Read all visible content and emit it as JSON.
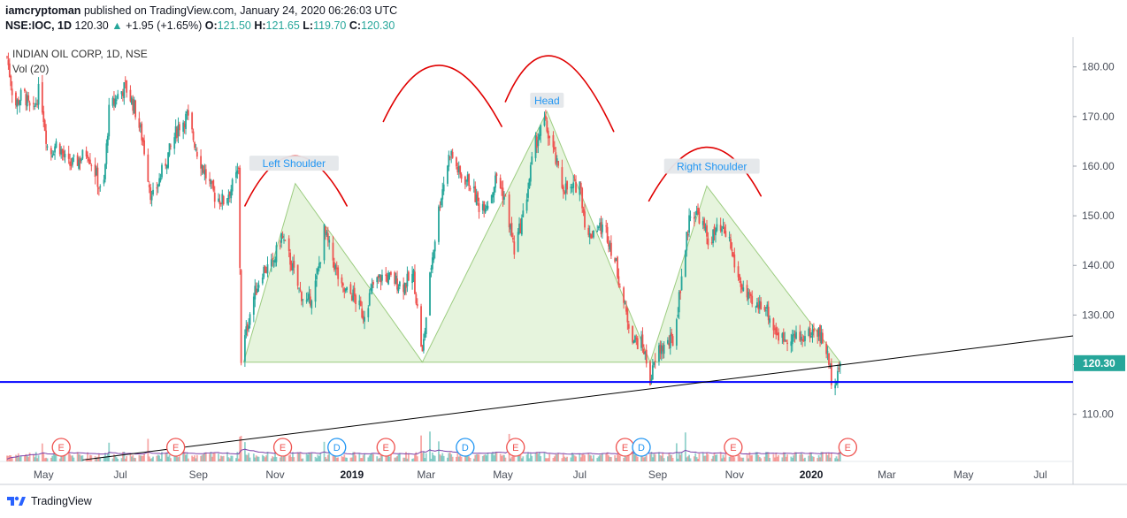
{
  "header": {
    "author": "iamcryptoman",
    "published_text": "published on TradingView.com, January 24, 2020 06:26:03 UTC",
    "symbol_line": "NSE:IOC, 1D",
    "last": "120.30",
    "arrow": "▲",
    "change": "+1.95 (+1.65%)",
    "o_label": "O:",
    "o_value": "121.50",
    "h_label": "H:",
    "h_value": "121.65",
    "l_label": "L:",
    "l_value": "119.70",
    "c_label": "C:",
    "c_value": "120.30"
  },
  "legend": {
    "series_title": "INDIAN OIL CORP, 1D, NSE",
    "volume_label": "Vol (20)"
  },
  "footer": {
    "brand": "TradingView"
  },
  "colors": {
    "up": "#26a69a",
    "down": "#ef5350",
    "support": "#0000ff",
    "trendline": "#000000",
    "hs_fill": "#c8e6b4",
    "arc": "#e00000",
    "price_badge": "#26a69a",
    "event_E": "#ef5350",
    "event_D": "#2196f3"
  },
  "chart_data": {
    "type": "candlestick",
    "y_axis": {
      "ticks": [
        110.0,
        120.0,
        130.0,
        140.0,
        150.0,
        160.0,
        170.0,
        180.0
      ],
      "range": [
        100.5,
        186.0
      ],
      "side": "right"
    },
    "x_axis": {
      "ticks": [
        "May",
        "Jul",
        "Sep",
        "Nov",
        "2019",
        "Mar",
        "May",
        "Jul",
        "Sep",
        "Nov",
        "2020",
        "Mar",
        "May",
        "Jul"
      ],
      "range": [
        "2018-04-02",
        "2020-07-27"
      ]
    },
    "last_price": "120.30",
    "price_path": [
      [
        "2018-04-02",
        182
      ],
      [
        "2018-04-08",
        172
      ],
      [
        "2018-04-15",
        175
      ],
      [
        "2018-04-22",
        170
      ],
      [
        "2018-04-28",
        176
      ],
      [
        "2018-05-05",
        162
      ],
      [
        "2018-05-12",
        165
      ],
      [
        "2018-05-20",
        160
      ],
      [
        "2018-05-28",
        161
      ],
      [
        "2018-06-05",
        163
      ],
      [
        "2018-06-12",
        158
      ],
      [
        "2018-06-17",
        153
      ],
      [
        "2018-06-22",
        171
      ],
      [
        "2018-06-28",
        174
      ],
      [
        "2018-07-05",
        176
      ],
      [
        "2018-07-12",
        172
      ],
      [
        "2018-07-19",
        165
      ],
      [
        "2018-07-26",
        153
      ],
      [
        "2018-08-02",
        158
      ],
      [
        "2018-08-09",
        163
      ],
      [
        "2018-08-16",
        168
      ],
      [
        "2018-08-23",
        170
      ],
      [
        "2018-08-31",
        163
      ],
      [
        "2018-09-07",
        158
      ],
      [
        "2018-09-14",
        154
      ],
      [
        "2018-09-21",
        153
      ],
      [
        "2018-09-28",
        156
      ],
      [
        "2018-10-03",
        159
      ],
      [
        "2018-10-05",
        121
      ],
      [
        "2018-10-07",
        124
      ],
      [
        "2018-10-14",
        133
      ],
      [
        "2018-10-22",
        139
      ],
      [
        "2018-10-30",
        140
      ],
      [
        "2018-11-06",
        146
      ],
      [
        "2018-11-13",
        141
      ],
      [
        "2018-11-20",
        135
      ],
      [
        "2018-11-27",
        132
      ],
      [
        "2018-12-04",
        137
      ],
      [
        "2018-12-10",
        147
      ],
      [
        "2018-12-16",
        142
      ],
      [
        "2018-12-24",
        135
      ],
      [
        "2019-01-02",
        134
      ],
      [
        "2019-01-10",
        130
      ],
      [
        "2019-01-18",
        136
      ],
      [
        "2019-01-26",
        138
      ],
      [
        "2019-02-03",
        137
      ],
      [
        "2019-02-11",
        136
      ],
      [
        "2019-02-19",
        138
      ],
      [
        "2019-02-26",
        122
      ],
      [
        "2019-03-05",
        140
      ],
      [
        "2019-03-12",
        153
      ],
      [
        "2019-03-20",
        163
      ],
      [
        "2019-03-28",
        158
      ],
      [
        "2019-04-04",
        157
      ],
      [
        "2019-04-12",
        152
      ],
      [
        "2019-04-20",
        153
      ],
      [
        "2019-04-26",
        158
      ],
      [
        "2019-05-03",
        153
      ],
      [
        "2019-05-10",
        143
      ],
      [
        "2019-05-18",
        151
      ],
      [
        "2019-05-26",
        164
      ],
      [
        "2019-06-03",
        169
      ],
      [
        "2019-06-10",
        163
      ],
      [
        "2019-06-17",
        156
      ],
      [
        "2019-06-24",
        155
      ],
      [
        "2019-07-01",
        157
      ],
      [
        "2019-07-07",
        145
      ],
      [
        "2019-07-14",
        148
      ],
      [
        "2019-07-22",
        147
      ],
      [
        "2019-07-30",
        140
      ],
      [
        "2019-08-06",
        131
      ],
      [
        "2019-08-13",
        125
      ],
      [
        "2019-08-20",
        124
      ],
      [
        "2019-08-26",
        117
      ],
      [
        "2019-09-02",
        123
      ],
      [
        "2019-09-08",
        124
      ],
      [
        "2019-09-14",
        125
      ],
      [
        "2019-09-20",
        138
      ],
      [
        "2019-09-27",
        151
      ],
      [
        "2019-10-04",
        150
      ],
      [
        "2019-10-11",
        145
      ],
      [
        "2019-10-19",
        147
      ],
      [
        "2019-10-27",
        146
      ],
      [
        "2019-11-03",
        138
      ],
      [
        "2019-11-10",
        134
      ],
      [
        "2019-11-17",
        131
      ],
      [
        "2019-11-24",
        133
      ],
      [
        "2019-12-01",
        128
      ],
      [
        "2019-12-08",
        125
      ],
      [
        "2019-12-15",
        126
      ],
      [
        "2019-12-22",
        125
      ],
      [
        "2019-12-29",
        126
      ],
      [
        "2020-01-06",
        127
      ],
      [
        "2020-01-13",
        123
      ],
      [
        "2020-01-18",
        116
      ],
      [
        "2020-01-21",
        118
      ],
      [
        "2020-01-24",
        120.3
      ]
    ],
    "head_and_shoulders": {
      "labels": [
        "Left Shoulder",
        "Head",
        "Right Shoulder"
      ],
      "left_shoulder": [
        [
          "2018-10-07",
          120.5
        ],
        [
          "2018-11-17",
          156.5
        ],
        [
          "2019-02-26",
          120.5
        ]
      ],
      "head": [
        [
          "2019-02-26",
          120.5
        ],
        [
          "2019-06-05",
          171
        ],
        [
          "2019-08-26",
          120.5
        ]
      ],
      "right_shoulder": [
        [
          "2019-08-26",
          120.5
        ],
        [
          "2019-10-10",
          156
        ],
        [
          "2020-01-24",
          120.5
        ]
      ]
    },
    "support_line": 116.5,
    "trendline": [
      [
        "2018-06-01",
        100.8
      ],
      [
        "2020-07-27",
        125.8
      ]
    ],
    "events": [
      {
        "label": "E",
        "date": "2018-05-15"
      },
      {
        "label": "E",
        "date": "2018-08-14"
      },
      {
        "label": "E",
        "date": "2018-11-07"
      },
      {
        "label": "D",
        "date": "2018-12-20"
      },
      {
        "label": "E",
        "date": "2019-01-28"
      },
      {
        "label": "D",
        "date": "2019-04-01"
      },
      {
        "label": "E",
        "date": "2019-05-11"
      },
      {
        "label": "E",
        "date": "2019-08-06"
      },
      {
        "label": "D",
        "date": "2019-08-19"
      },
      {
        "label": "E",
        "date": "2019-10-31"
      },
      {
        "label": "E",
        "date": "2020-01-30"
      }
    ]
  }
}
